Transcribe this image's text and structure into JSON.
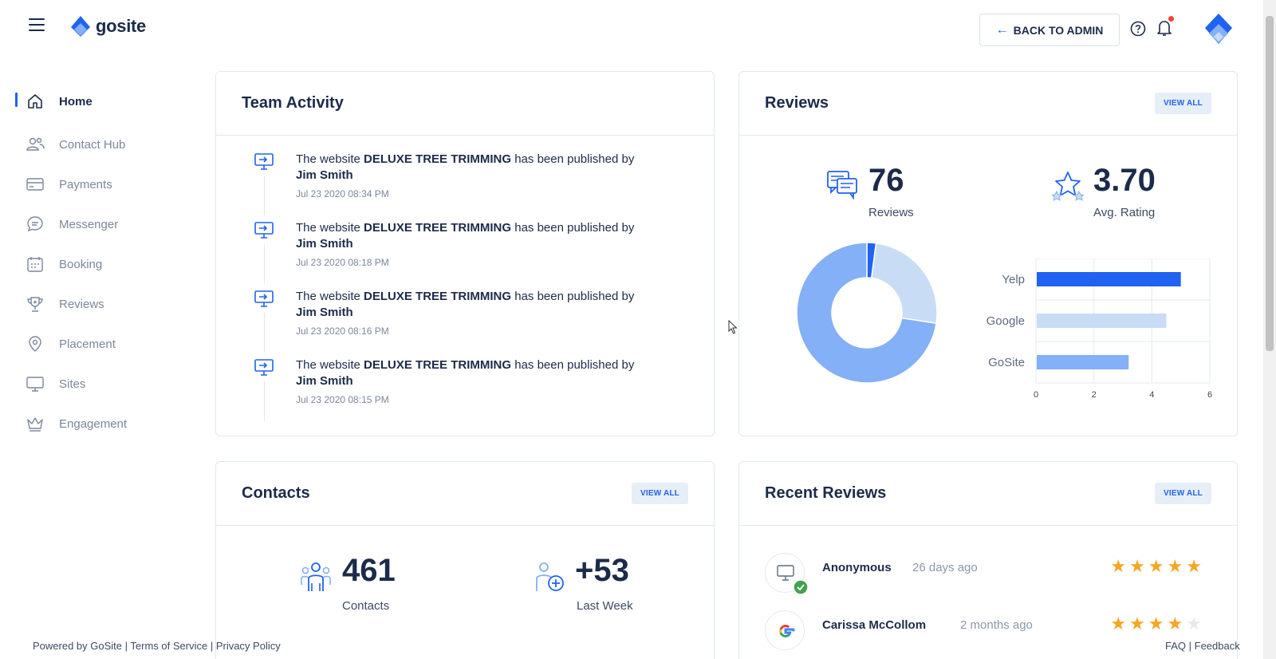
{
  "header": {
    "logo_text": "gosite",
    "back_button": "BACK TO ADMIN"
  },
  "sidebar": {
    "items": [
      {
        "label": "Home",
        "icon": "home-icon"
      },
      {
        "label": "Contact Hub",
        "icon": "contacts-icon"
      },
      {
        "label": "Payments",
        "icon": "credit-card-icon"
      },
      {
        "label": "Messenger",
        "icon": "chat-icon"
      },
      {
        "label": "Booking",
        "icon": "calendar-icon"
      },
      {
        "label": "Reviews",
        "icon": "trophy-icon"
      },
      {
        "label": "Placement",
        "icon": "location-pin-icon"
      },
      {
        "label": "Sites",
        "icon": "monitor-icon"
      },
      {
        "label": "Engagement",
        "icon": "crown-icon"
      }
    ]
  },
  "team_activity": {
    "title": "Team Activity",
    "items": [
      {
        "prefix": "The website ",
        "site": "DELUXE TREE TRIMMING",
        "middle": " has been published by",
        "user": "Jim Smith",
        "time": "Jul 23 2020 08:34 PM"
      },
      {
        "prefix": "The website ",
        "site": "DELUXE TREE TRIMMING",
        "middle": " has been published by",
        "user": "Jim Smith",
        "time": "Jul 23 2020 08:18 PM"
      },
      {
        "prefix": "The website ",
        "site": "DELUXE TREE TRIMMING",
        "middle": " has been published by",
        "user": "Jim Smith",
        "time": "Jul 23 2020 08:16 PM"
      },
      {
        "prefix": "The website ",
        "site": "DELUXE TREE TRIMMING",
        "middle": " has been published by",
        "user": "Jim Smith",
        "time": "Jul 23 2020 08:15 PM"
      }
    ]
  },
  "reviews": {
    "title": "Reviews",
    "view_all": "VIEW ALL",
    "count": "76",
    "count_label": "Reviews",
    "avg": "3.70",
    "avg_label": "Avg. Rating"
  },
  "chart_data": [
    {
      "type": "pie",
      "title": "",
      "series": [
        {
          "value": 2.1,
          "color": "#2162f0"
        },
        {
          "value": 25.3,
          "color": "#c9dcf6"
        },
        {
          "value": 72.6,
          "color": "#83b0f6"
        }
      ]
    },
    {
      "type": "bar",
      "title": "",
      "orientation": "horizontal",
      "categories": [
        "Yelp",
        "Google",
        "GoSite"
      ],
      "values": [
        5,
        4.5,
        3.2
      ],
      "colors": [
        "#2162f0",
        "#c9dcf6",
        "#83b0f6"
      ],
      "xlim": [
        0,
        6
      ],
      "xticks": [
        "0",
        "2",
        "4",
        "6"
      ],
      "grid": true
    }
  ],
  "contacts": {
    "title": "Contacts",
    "view_all": "VIEW ALL",
    "count": "461",
    "count_label": "Contacts",
    "new": "+53",
    "new_label": "Last Week"
  },
  "recent_reviews": {
    "title": "Recent Reviews",
    "view_all": "VIEW ALL",
    "items": [
      {
        "name": "Anonymous",
        "date": "26 days ago",
        "rating": 5,
        "source_icon": "monitor-icon"
      },
      {
        "name": "Carissa McCollom",
        "date": "2 months ago",
        "rating": 4,
        "source_icon": "google-icon"
      }
    ]
  },
  "footer": {
    "powered": "Powered by GoSite",
    "terms": "Terms of Service",
    "privacy": "Privacy Policy",
    "faq": "FAQ",
    "feedback": "Feedback"
  }
}
